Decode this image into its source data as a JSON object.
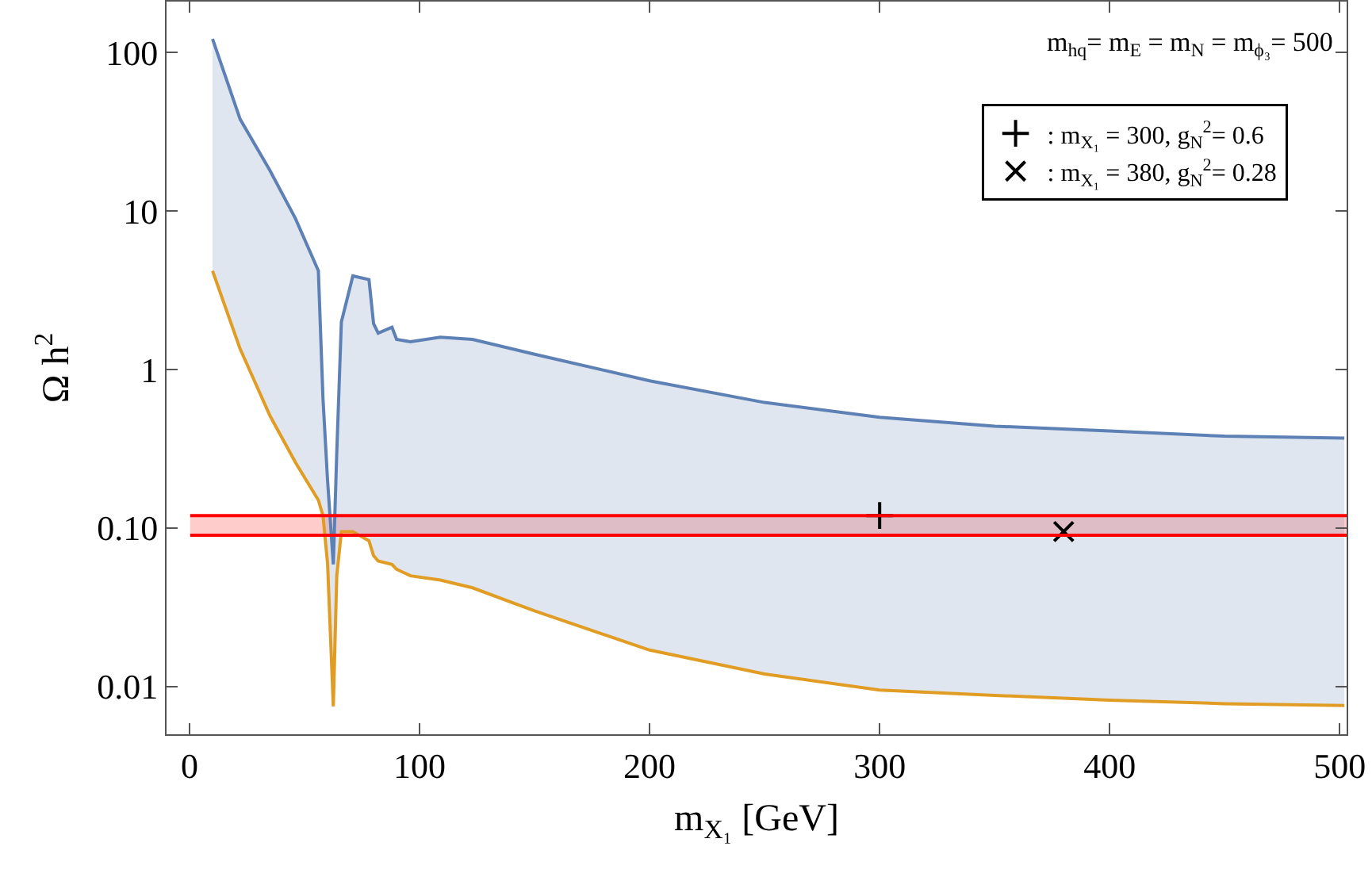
{
  "chart_data": {
    "type": "line",
    "xlabel": "m$_{X₁}$ [GeV]",
    "ylabel": "Ω h$^{2}$",
    "log": "y",
    "grid": false,
    "legend": "top right",
    "x": [
      10,
      22,
      35,
      46,
      56,
      58,
      60,
      62.5,
      64,
      66,
      71,
      78,
      80,
      82,
      88,
      90,
      96,
      109,
      123,
      150,
      200,
      250,
      300,
      350,
      400,
      450,
      502
    ],
    "series": [
      {
        "color": "#e19c24",
        "values": [
          4.2,
          1.35,
          0.51,
          0.26,
          0.15,
          0.12,
          0.06,
          0.0075,
          0.05,
          0.095,
          0.095,
          0.083,
          0.067,
          0.062,
          0.059,
          0.055,
          0.05,
          0.047,
          0.042,
          0.03,
          0.017,
          0.012,
          0.0095,
          0.0088,
          0.0082,
          0.0078,
          0.0076
        ]
      },
      {
        "type": "area",
        "color": "#5e81b5",
        "values": [
          122,
          38,
          18,
          9,
          4.2,
          0.66,
          0.2,
          0.059,
          0.3,
          2.0,
          3.9,
          3.7,
          1.95,
          1.7,
          1.85,
          1.55,
          1.5,
          1.6,
          1.55,
          1.25,
          0.85,
          0.62,
          0.5,
          0.44,
          0.41,
          0.38,
          0.37
        ]
      },
      {
        "type": "scatter",
        "name": ": m$_{X₁}$ = 300, g$_{N}$$^{2}$= 0.6",
        "marker": "cross",
        "color": "#000000",
        "x": [
          300
        ],
        "values": [
          0.12
        ]
      },
      {
        "type": "scatter",
        "name": ": m$_{X₁}$ = 380, g$_{N}$$^{2}$= 0.28",
        "marker": "x",
        "color": "#000000",
        "x": [
          380
        ],
        "values": [
          0.095
        ]
      }
    ],
    "bands": [
      {
        "axis": "y",
        "from": 0.09,
        "to": 0.12,
        "color": "#ff0000"
      }
    ],
    "ref_lines": [
      {
        "axis": "y",
        "value": 0.09,
        "color": "#ff0000"
      },
      {
        "axis": "y",
        "value": 0.12,
        "color": "#ff0000"
      }
    ],
    "annotations": [
      "m$_{hq}$= m$_{E}$ = m$_{N}$ = m$_{ϕ₃}$= 500"
    ],
    "xlim": [
      -10,
      503
    ],
    "xticks": [
      0,
      100,
      200,
      300,
      400,
      500
    ],
    "ylim": [
      0.005,
      210
    ],
    "yticks": [
      0.01,
      {
        "value": 0.1,
        "label": "0.10"
      },
      1,
      10,
      100
    ]
  }
}
